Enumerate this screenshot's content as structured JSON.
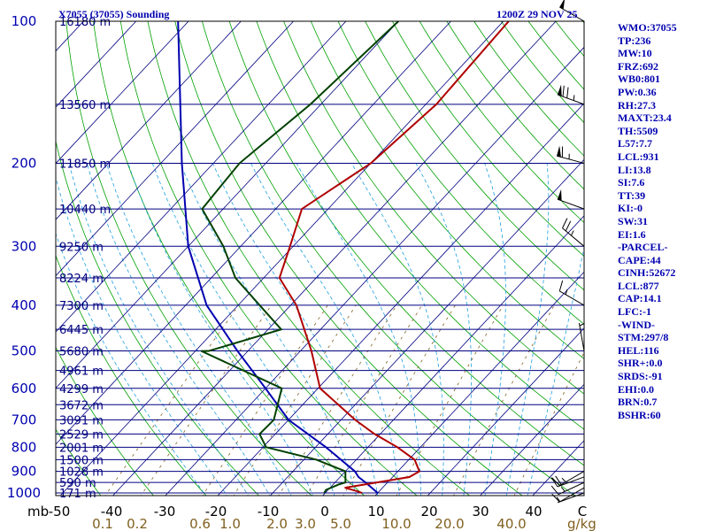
{
  "header": {
    "station_title": "X7055 (37055) Sounding",
    "valid_time": "1200Z 29 NOV 25"
  },
  "colors": {
    "temperature": "#b00000",
    "dewpoint": "#004000",
    "parcel": "#0000b0",
    "isobar": "#000080",
    "dry_adiabat": "#00a000",
    "moist_adiabat": "#20a0e0",
    "mixing_ratio": "#806020",
    "text": "#0000b0"
  },
  "side_panel": [
    "WMO:37055",
    "TP:236",
    "MW:10",
    "FRZ:692",
    "WB0:801",
    "PW:0.36",
    "RH:27.3",
    "MAXT:23.4",
    "TH:5509",
    "L57:7.7",
    "LCL:931",
    "LI:13.8",
    "SI:7.6",
    "TT:39",
    "KI:-0",
    "SW:31",
    "EI:1.6",
    "-PARCEL-",
    "CAPE:44",
    "CINH:52672",
    "LCL:877",
    "CAP:14.1",
    "LFC:-1",
    "-WIND-",
    "STM:297/8",
    "HEL:116",
    "SHR+:0.0",
    "SRDS:-91",
    "EHI:0.0",
    "BRN:0.7",
    "BSHR:60"
  ],
  "chart_data": {
    "type": "skew-t log-p",
    "pressure_axis": {
      "ticks": [
        100,
        200,
        300,
        400,
        500,
        600,
        700,
        800,
        900,
        1000
      ],
      "range_hpa": [
        1050,
        100
      ]
    },
    "temperature_axis": {
      "unit_label": "mb",
      "ticks": [
        "-50",
        "-40",
        "-30",
        "-20",
        "-10",
        "0",
        "10",
        "20",
        "30",
        "40",
        "C"
      ]
    },
    "mixing_ratio_axis": {
      "unit": "g/kg",
      "values": [
        0.1,
        0.2,
        0.6,
        1.0,
        2.0,
        3.0,
        5.0,
        10.0,
        20.0,
        40.0
      ],
      "labels": [
        "0.1",
        "0.2",
        "0.6",
        "1.0",
        "2.0",
        "3.0",
        "5.0",
        "10.0",
        "20.0",
        "40.0"
      ]
    },
    "height_labels": [
      {
        "p": 100,
        "label": "16180 m"
      },
      {
        "p": 150,
        "label": "13560 m"
      },
      {
        "p": 200,
        "label": "11850 m"
      },
      {
        "p": 250,
        "label": "10440 m"
      },
      {
        "p": 300,
        "label": "9250 m"
      },
      {
        "p": 350,
        "label": "8224 m"
      },
      {
        "p": 400,
        "label": "7300 m"
      },
      {
        "p": 450,
        "label": "6445 m"
      },
      {
        "p": 500,
        "label": "5680 m"
      },
      {
        "p": 550,
        "label": "4961 m"
      },
      {
        "p": 600,
        "label": "4299 m"
      },
      {
        "p": 650,
        "label": "3672 m"
      },
      {
        "p": 700,
        "label": "3091 m"
      },
      {
        "p": 750,
        "label": "2529 m"
      },
      {
        "p": 800,
        "label": "2001 m"
      },
      {
        "p": 850,
        "label": "1500 m"
      },
      {
        "p": 900,
        "label": "1028 m"
      },
      {
        "p": 950,
        "label": "590 m"
      },
      {
        "p": 1000,
        "label": "171 m"
      }
    ],
    "temperature_profile": [
      [
        1000,
        7.0
      ],
      [
        990,
        5.5
      ],
      [
        975,
        2.8
      ],
      [
        950,
        8.0
      ],
      [
        925,
        13.2
      ],
      [
        900,
        14.1
      ],
      [
        850,
        11.1
      ],
      [
        800,
        5.6
      ],
      [
        750,
        -1.1
      ],
      [
        700,
        -7.3
      ],
      [
        600,
        -19.6
      ],
      [
        500,
        -27.9
      ],
      [
        400,
        -38.9
      ],
      [
        350,
        -47.0
      ],
      [
        300,
        -50.6
      ],
      [
        250,
        -55.0
      ],
      [
        200,
        -50.0
      ],
      [
        150,
        -48.0
      ],
      [
        100,
        -49.0
      ]
    ],
    "dewpoint_profile": [
      [
        1000,
        -0.2
      ],
      [
        985,
        -0.4
      ],
      [
        960,
        1.0
      ],
      [
        950,
        2.0
      ],
      [
        925,
        1.0
      ],
      [
        900,
        0.0
      ],
      [
        850,
        -7.6
      ],
      [
        800,
        -19.4
      ],
      [
        750,
        -23.0
      ],
      [
        700,
        -22.8
      ],
      [
        600,
        -26.9
      ],
      [
        500,
        -48.9
      ],
      [
        500,
        -47.5
      ],
      [
        450,
        -37.5
      ],
      [
        400,
        -45.9
      ],
      [
        350,
        -55.4
      ],
      [
        300,
        -63.3
      ],
      [
        250,
        -74.0
      ],
      [
        200,
        -75.0
      ],
      [
        150,
        -72.0
      ],
      [
        100,
        -70.0
      ]
    ],
    "parcel_profile": [
      [
        1000,
        10.0
      ],
      [
        950,
        5.8
      ],
      [
        925,
        3.5
      ],
      [
        900,
        1.8
      ],
      [
        800,
        -8.0
      ],
      [
        700,
        -20.0
      ],
      [
        600,
        -30.0
      ],
      [
        500,
        -42.0
      ],
      [
        400,
        -56.0
      ],
      [
        300,
        -70.0
      ],
      [
        200,
        -86.0
      ],
      [
        100,
        -112.0
      ]
    ],
    "wind_barbs": [
      {
        "p": 1000,
        "dir": 250,
        "kt": 5
      },
      {
        "p": 975,
        "dir": 240,
        "kt": 10
      },
      {
        "p": 950,
        "dir": 245,
        "kt": 15
      },
      {
        "p": 925,
        "dir": 250,
        "kt": 20
      },
      {
        "p": 900,
        "dir": 240,
        "kt": 15
      },
      {
        "p": 500,
        "dir": 350,
        "kt": 5
      },
      {
        "p": 400,
        "dir": 300,
        "kt": 15
      },
      {
        "p": 300,
        "dir": 310,
        "kt": 25
      },
      {
        "p": 250,
        "dir": 290,
        "kt": 50
      },
      {
        "p": 200,
        "dir": 285,
        "kt": 65
      },
      {
        "p": 150,
        "dir": 290,
        "kt": 75
      },
      {
        "p": 100,
        "dir": 300,
        "kt": 50
      }
    ]
  }
}
